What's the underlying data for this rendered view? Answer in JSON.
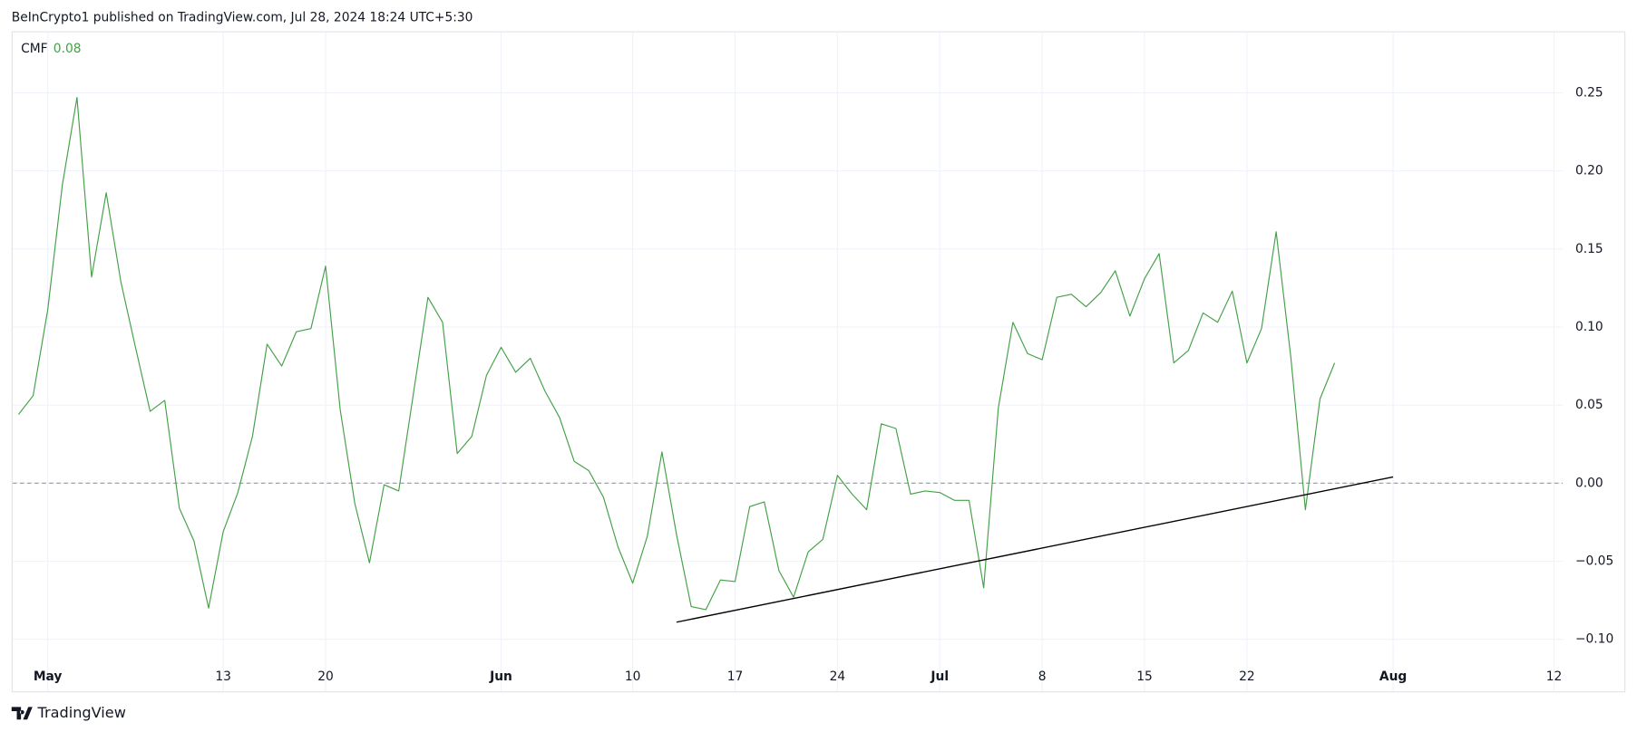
{
  "header": {
    "title": "BeInCrypto1 published on TradingView.com, Jul 28, 2024 18:24 UTC+5:30"
  },
  "footer": {
    "brand": "TradingView"
  },
  "chart_data": {
    "type": "line",
    "indicator": {
      "name": "CMF",
      "value": 0.08
    },
    "x": [
      -2,
      -1,
      0,
      1,
      2,
      3,
      4,
      5,
      6,
      7,
      8,
      9,
      10,
      11,
      12,
      13,
      14,
      15,
      16,
      17,
      18,
      19,
      20,
      21,
      22,
      23,
      24,
      25,
      26,
      27,
      28,
      29,
      30,
      31,
      32,
      33,
      34,
      35,
      36,
      37,
      38,
      39,
      40,
      41,
      42,
      43,
      44,
      45,
      46,
      47,
      48,
      49,
      50,
      51,
      52,
      53,
      54,
      55,
      56,
      57,
      58,
      59,
      60,
      61,
      62,
      63,
      64,
      65,
      66,
      67,
      68,
      69,
      70,
      71,
      72,
      73,
      74,
      75,
      76,
      77,
      78,
      79,
      80,
      81,
      82,
      83,
      84,
      85,
      86,
      87,
      88
    ],
    "series": [
      {
        "name": "CMF",
        "color": "#43a047",
        "values": [
          0.044,
          0.056,
          0.111,
          0.191,
          0.247,
          0.132,
          0.186,
          0.129,
          0.087,
          0.046,
          0.053,
          -0.016,
          -0.037,
          -0.08,
          -0.031,
          -0.006,
          0.03,
          0.089,
          0.075,
          0.097,
          0.099,
          0.139,
          0.047,
          -0.013,
          -0.051,
          -0.001,
          -0.005,
          0.057,
          0.119,
          0.103,
          0.019,
          0.03,
          0.069,
          0.087,
          0.071,
          0.08,
          0.059,
          0.042,
          0.014,
          0.008,
          -0.009,
          -0.041,
          -0.064,
          -0.034,
          0.02,
          -0.033,
          -0.079,
          -0.081,
          -0.062,
          -0.063,
          -0.015,
          -0.012,
          -0.056,
          -0.073,
          -0.044,
          -0.036,
          0.005,
          -0.007,
          -0.017,
          0.038,
          0.035,
          -0.007,
          -0.005,
          -0.006,
          -0.011,
          -0.011,
          -0.067,
          0.048,
          0.103,
          0.083,
          0.079,
          0.119,
          0.121,
          0.113,
          0.122,
          0.136,
          0.107,
          0.131,
          0.147,
          0.077,
          0.085,
          0.109,
          0.103,
          0.123,
          0.077,
          0.099,
          0.161,
          0.081,
          -0.017,
          0.054,
          0.077
        ]
      }
    ],
    "trendline": {
      "color": "#000000",
      "x": [
        43,
        92
      ],
      "values": [
        -0.089,
        0.004
      ]
    },
    "hline": {
      "value": 0,
      "color": "#9598a1"
    },
    "xlim": [
      -2.4,
      103.6
    ],
    "ylim": [
      -0.1333,
      0.2887
    ],
    "xticks": [
      {
        "value": 0,
        "label": "May"
      },
      {
        "value": 12,
        "label": "13"
      },
      {
        "value": 19,
        "label": "20"
      },
      {
        "value": 31,
        "label": "Jun"
      },
      {
        "value": 40,
        "label": "10"
      },
      {
        "value": 47,
        "label": "17"
      },
      {
        "value": 54,
        "label": "24"
      },
      {
        "value": 61,
        "label": "Jul"
      },
      {
        "value": 68,
        "label": "8"
      },
      {
        "value": 75,
        "label": "15"
      },
      {
        "value": 82,
        "label": "22"
      },
      {
        "value": 92,
        "label": "Aug"
      },
      {
        "value": 103,
        "label": "12"
      }
    ],
    "yticks": [
      {
        "value": -0.1,
        "label": "−0.10"
      },
      {
        "value": -0.05,
        "label": "−0.05"
      },
      {
        "value": 0,
        "label": "0.00"
      },
      {
        "value": 0.05,
        "label": "0.05"
      },
      {
        "value": 0.1,
        "label": "0.10"
      },
      {
        "value": 0.15,
        "label": "0.15"
      },
      {
        "value": 0.2,
        "label": "0.20"
      },
      {
        "value": 0.25,
        "label": "0.25"
      }
    ],
    "grid": true
  }
}
